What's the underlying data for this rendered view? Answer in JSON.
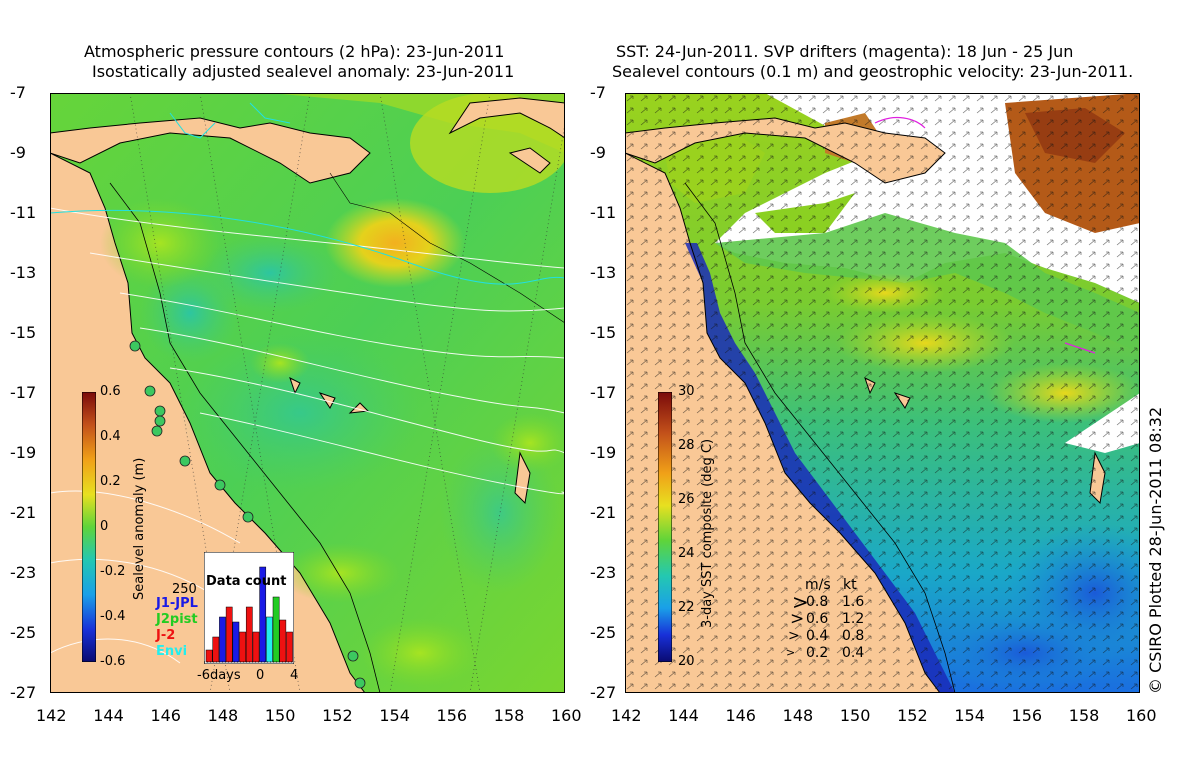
{
  "left_panel": {
    "title_line1": "Atmospheric pressure contours (2 hPa): 23-Jun-2011",
    "title_line2": "Isostatically adjusted sealevel anomaly: 23-Jun-2011",
    "colorbar": {
      "label": "Sealevel anomaly (m)",
      "ticks": [
        "0.6",
        "0.4",
        "0.2",
        "0",
        "-0.2",
        "-0.4",
        "-0.6"
      ]
    },
    "data_count": {
      "title": "Data count",
      "max_label": "250",
      "x_ticks": [
        "-6days",
        "0",
        "4"
      ],
      "legend": [
        {
          "name": "J1-JPL",
          "color": "#1a1ae6"
        },
        {
          "name": "J2pist",
          "color": "#22cc22"
        },
        {
          "name": "J-2",
          "color": "#ee1111"
        },
        {
          "name": "Envi",
          "color": "#22eeee"
        }
      ]
    }
  },
  "right_panel": {
    "title_line1": "SST: 24-Jun-2011. SVP drifters (magenta): 18 Jun - 25 Jun",
    "title_line2": "Sealevel contours (0.1 m) and geostrophic velocity: 23-Jun-2011.",
    "colorbar": {
      "label": "3-day SST composite (deg C)",
      "ticks": [
        "30",
        "28",
        "26",
        "24",
        "22",
        "20"
      ]
    },
    "velocity_scale": {
      "header_ms": "m/s",
      "header_kt": "kt",
      "rows": [
        {
          "ms": "0.8",
          "kt": "1.6"
        },
        {
          "ms": "0.6",
          "kt": "1.2"
        },
        {
          "ms": "0.4",
          "kt": "0.8"
        },
        {
          "ms": "0.2",
          "kt": "0.4"
        }
      ]
    }
  },
  "axes": {
    "lat_ticks": [
      "-7",
      "-9",
      "-11",
      "-13",
      "-15",
      "-17",
      "-19",
      "-21",
      "-23",
      "-25",
      "-27"
    ],
    "lon_ticks": [
      "142",
      "144",
      "146",
      "148",
      "150",
      "152",
      "154",
      "156",
      "158",
      "160"
    ]
  },
  "credit": "© CSIRO Plotted 28-Jun-2011 08:32",
  "colors": {
    "land": "#f9c896",
    "sla_mid": "#5fd43a",
    "sst_warm": "#8fd21f"
  }
}
